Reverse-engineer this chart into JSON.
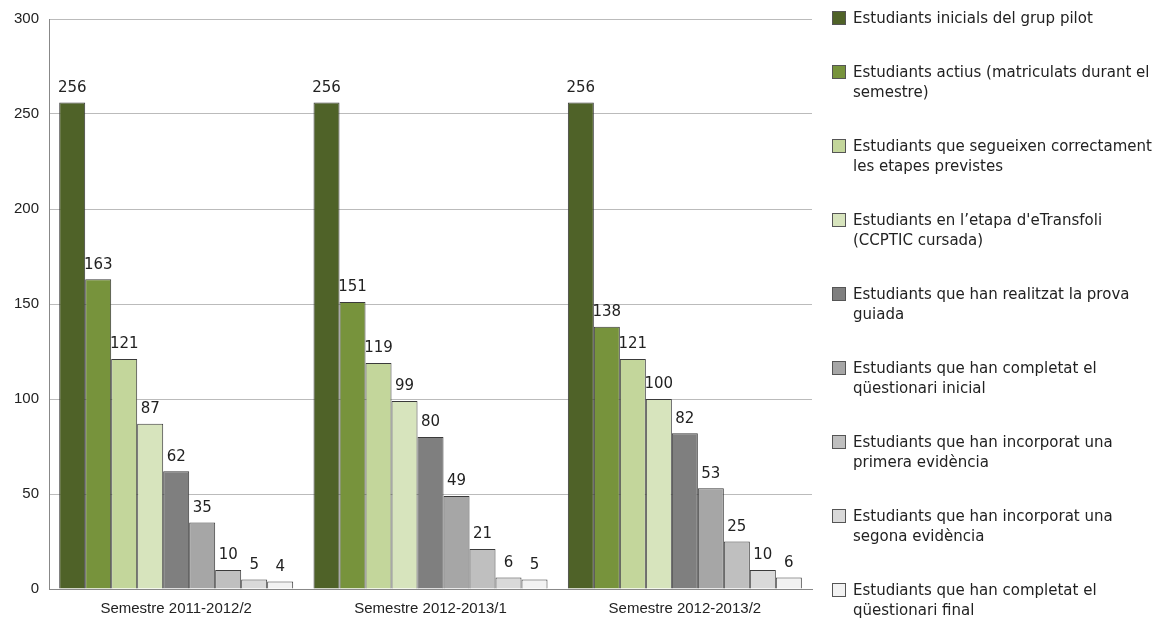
{
  "chart_data": {
    "type": "bar",
    "categories": [
      "Semestre 2011-2012/2",
      "Semestre 2012-2013/1",
      "Semestre 2012-2013/2"
    ],
    "series": [
      {
        "name": "Estudiants inicials del grup pilot",
        "color": "#4f6228",
        "values": [
          256,
          256,
          256
        ]
      },
      {
        "name": "Estudiants actius (matriculats durant el semestre)",
        "color": "#77933c",
        "values": [
          163,
          151,
          138
        ]
      },
      {
        "name": "Estudiants que segueixen correctament les etapes previstes",
        "color": "#c3d69b",
        "values": [
          121,
          119,
          121
        ]
      },
      {
        "name": "Estudiants en l’etapa d'eTransfoli (CCPTIC cursada)",
        "color": "#d7e4bd",
        "values": [
          87,
          99,
          100
        ]
      },
      {
        "name": "Estudiants que han realitzat la prova guiada",
        "color": "#7f7f7f",
        "values": [
          62,
          80,
          82
        ]
      },
      {
        "name": "Estudiants que han completat el qüestionari inicial",
        "color": "#a6a6a6",
        "values": [
          35,
          49,
          53
        ]
      },
      {
        "name": "Estudiants que han incorporat una primera evidència",
        "color": "#bfbfbf",
        "values": [
          10,
          21,
          25
        ]
      },
      {
        "name": "Estudiants que han incorporat una segona evidència",
        "color": "#d9d9d9",
        "values": [
          5,
          6,
          10
        ]
      },
      {
        "name": "Estudiants que han completat el qüestionari final",
        "color": "#f2f2f2",
        "values": [
          4,
          5,
          6
        ]
      }
    ],
    "ylim": [
      0,
      300
    ],
    "yticks": [
      0,
      50,
      100,
      150,
      200,
      250,
      300
    ],
    "grid": "y",
    "legend": "right",
    "data_labels": true
  }
}
